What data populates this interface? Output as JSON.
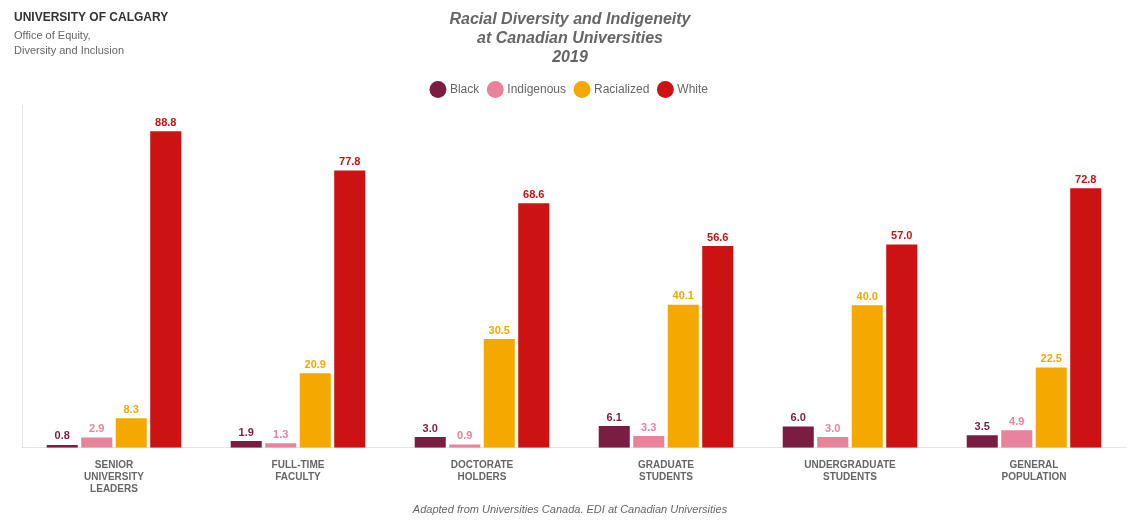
{
  "chart_data": {
    "type": "bar",
    "title": [
      "Racial Diversity and Indigeneity",
      "at Canadian Universities",
      "2019"
    ],
    "subtitle": "Adapted from Universities Canada. EDI at Canadian Universities",
    "annotations": [
      "UNIVERSITY OF CALGARY",
      "Office of Equity,",
      "Diversity and Inclusion"
    ],
    "categories": [
      "SENIOR\nUNIVERSITY\nLEADERS",
      "FULL-TIME\nFACULTY",
      "DOCTORATE\nHOLDERS",
      "GRADUATE\nSTUDENTS",
      "UNDERGRADUATE\nSTUDENTS",
      "GENERAL\nPOPULATION"
    ],
    "series": [
      {
        "name": "Black",
        "color": "#7B1C42",
        "values": [
          0.8,
          1.9,
          3.0,
          6.1,
          6.0,
          3.5
        ],
        "value_labels": [
          "0.8",
          "1.9",
          "3.0",
          "6.1",
          "6.0",
          "3.5"
        ]
      },
      {
        "name": "Indigenous",
        "color": "#E8839B",
        "values": [
          2.9,
          1.3,
          0.9,
          3.3,
          3.0,
          4.9
        ],
        "value_labels": [
          "2.9",
          "1.3",
          "0.9",
          "3.3",
          "3.0",
          "4.9"
        ]
      },
      {
        "name": "Racialized",
        "color": "#F5A800",
        "values": [
          8.3,
          20.9,
          30.5,
          40.1,
          40.0,
          22.5
        ],
        "value_labels": [
          "8.3",
          "20.9",
          "30.5",
          "40.1",
          "40.0",
          "22.5"
        ]
      },
      {
        "name": "White",
        "color": "#CC1212",
        "values": [
          88.8,
          77.8,
          68.6,
          56.6,
          57.0,
          72.8
        ],
        "value_labels": [
          "88.8",
          "77.8",
          "68.6",
          "56.6",
          "57.0",
          "72.8"
        ]
      }
    ],
    "ylim": [
      0,
      96
    ],
    "grid": false,
    "legend": "top",
    "data_labels": true,
    "tick_labels": "x"
  }
}
